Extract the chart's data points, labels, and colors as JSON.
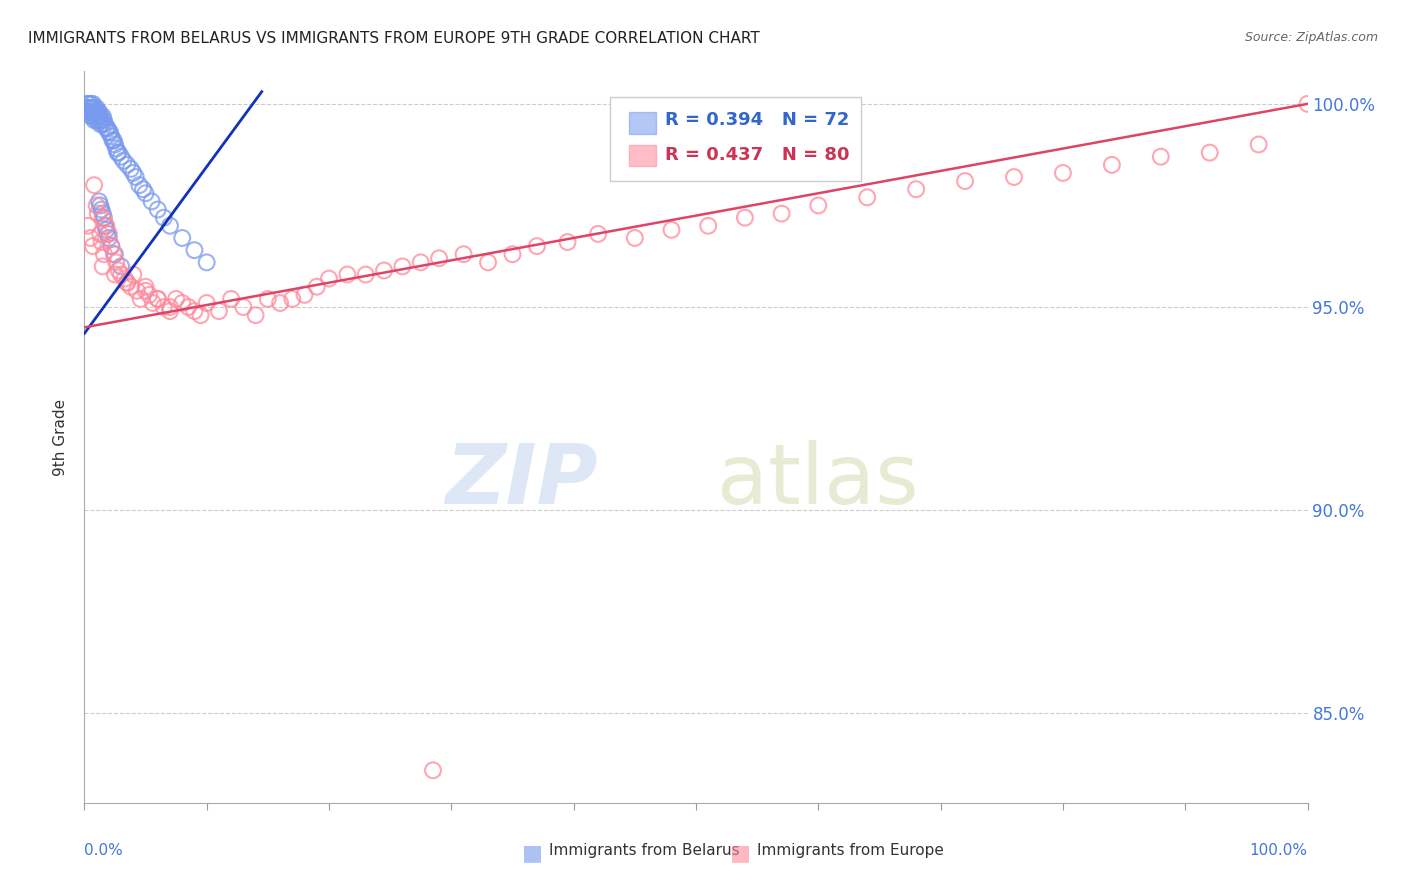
{
  "title": "IMMIGRANTS FROM BELARUS VS IMMIGRANTS FROM EUROPE 9TH GRADE CORRELATION CHART",
  "source": "Source: ZipAtlas.com",
  "ylabel": "9th Grade",
  "xlim": [
    0.0,
    1.0
  ],
  "ylim": [
    0.828,
    1.008
  ],
  "yticks": [
    0.85,
    0.9,
    0.95,
    1.0
  ],
  "ytick_labels": [
    "85.0%",
    "90.0%",
    "95.0%",
    "100.0%"
  ],
  "blue_R": 0.394,
  "blue_N": 72,
  "pink_R": 0.437,
  "pink_N": 80,
  "blue_color": "#7799ee",
  "pink_color": "#ff8899",
  "blue_line_color": "#1133bb",
  "pink_line_color": "#dd4466",
  "legend_label_blue": "Immigrants from Belarus",
  "legend_label_pink": "Immigrants from Europe",
  "blue_scatter_x": [
    0.002,
    0.003,
    0.003,
    0.004,
    0.004,
    0.004,
    0.005,
    0.005,
    0.005,
    0.006,
    0.006,
    0.007,
    0.007,
    0.007,
    0.008,
    0.008,
    0.008,
    0.009,
    0.009,
    0.01,
    0.01,
    0.01,
    0.011,
    0.011,
    0.012,
    0.012,
    0.013,
    0.013,
    0.014,
    0.015,
    0.015,
    0.016,
    0.017,
    0.018,
    0.019,
    0.02,
    0.021,
    0.022,
    0.023,
    0.024,
    0.025,
    0.026,
    0.027,
    0.028,
    0.03,
    0.032,
    0.035,
    0.038,
    0.04,
    0.042,
    0.045,
    0.048,
    0.05,
    0.055,
    0.06,
    0.065,
    0.07,
    0.08,
    0.09,
    0.1,
    0.012,
    0.013,
    0.014,
    0.015,
    0.016,
    0.017,
    0.018,
    0.019,
    0.02,
    0.022,
    0.025,
    0.03
  ],
  "blue_scatter_y": [
    1.0,
    0.999,
    0.998,
    1.0,
    0.999,
    0.998,
    1.0,
    0.999,
    0.997,
    0.999,
    0.998,
    1.0,
    0.999,
    0.997,
    0.999,
    0.998,
    0.996,
    0.998,
    0.997,
    0.999,
    0.998,
    0.996,
    0.998,
    0.997,
    0.998,
    0.996,
    0.997,
    0.995,
    0.996,
    0.997,
    0.995,
    0.996,
    0.995,
    0.994,
    0.994,
    0.993,
    0.993,
    0.992,
    0.991,
    0.991,
    0.99,
    0.989,
    0.988,
    0.988,
    0.987,
    0.986,
    0.985,
    0.984,
    0.983,
    0.982,
    0.98,
    0.979,
    0.978,
    0.976,
    0.974,
    0.972,
    0.97,
    0.967,
    0.964,
    0.961,
    0.976,
    0.975,
    0.974,
    0.973,
    0.972,
    0.97,
    0.969,
    0.968,
    0.967,
    0.965,
    0.963,
    0.96
  ],
  "pink_scatter_x": [
    0.003,
    0.005,
    0.007,
    0.008,
    0.01,
    0.011,
    0.013,
    0.014,
    0.015,
    0.016,
    0.018,
    0.02,
    0.022,
    0.024,
    0.026,
    0.028,
    0.03,
    0.033,
    0.035,
    0.038,
    0.04,
    0.043,
    0.046,
    0.05,
    0.053,
    0.056,
    0.06,
    0.065,
    0.07,
    0.075,
    0.08,
    0.085,
    0.09,
    0.095,
    0.1,
    0.11,
    0.12,
    0.13,
    0.14,
    0.15,
    0.16,
    0.17,
    0.18,
    0.19,
    0.2,
    0.215,
    0.23,
    0.245,
    0.26,
    0.275,
    0.29,
    0.31,
    0.33,
    0.35,
    0.37,
    0.395,
    0.42,
    0.45,
    0.48,
    0.51,
    0.54,
    0.57,
    0.6,
    0.64,
    0.68,
    0.72,
    0.76,
    0.8,
    0.84,
    0.88,
    0.92,
    0.96,
    1.0,
    0.285,
    0.015,
    0.025,
    0.035,
    0.05,
    0.06,
    0.07
  ],
  "pink_scatter_y": [
    0.97,
    0.967,
    0.965,
    0.98,
    0.975,
    0.973,
    0.968,
    0.966,
    0.972,
    0.963,
    0.97,
    0.968,
    0.965,
    0.963,
    0.961,
    0.959,
    0.958,
    0.957,
    0.956,
    0.955,
    0.958,
    0.954,
    0.952,
    0.955,
    0.953,
    0.951,
    0.952,
    0.95,
    0.949,
    0.952,
    0.951,
    0.95,
    0.949,
    0.948,
    0.951,
    0.949,
    0.952,
    0.95,
    0.948,
    0.952,
    0.951,
    0.952,
    0.953,
    0.955,
    0.957,
    0.958,
    0.958,
    0.959,
    0.96,
    0.961,
    0.962,
    0.963,
    0.961,
    0.963,
    0.965,
    0.966,
    0.968,
    0.967,
    0.969,
    0.97,
    0.972,
    0.973,
    0.975,
    0.977,
    0.979,
    0.981,
    0.982,
    0.983,
    0.985,
    0.987,
    0.988,
    0.99,
    1.0,
    0.836,
    0.96,
    0.958,
    0.956,
    0.954,
    0.952,
    0.95
  ],
  "blue_line_x0": 0.0,
  "blue_line_x1": 0.145,
  "blue_line_y0": 0.9435,
  "blue_line_y1": 1.003,
  "pink_line_x0": 0.0,
  "pink_line_x1": 1.0,
  "pink_line_y0": 0.945,
  "pink_line_y1": 1.0
}
